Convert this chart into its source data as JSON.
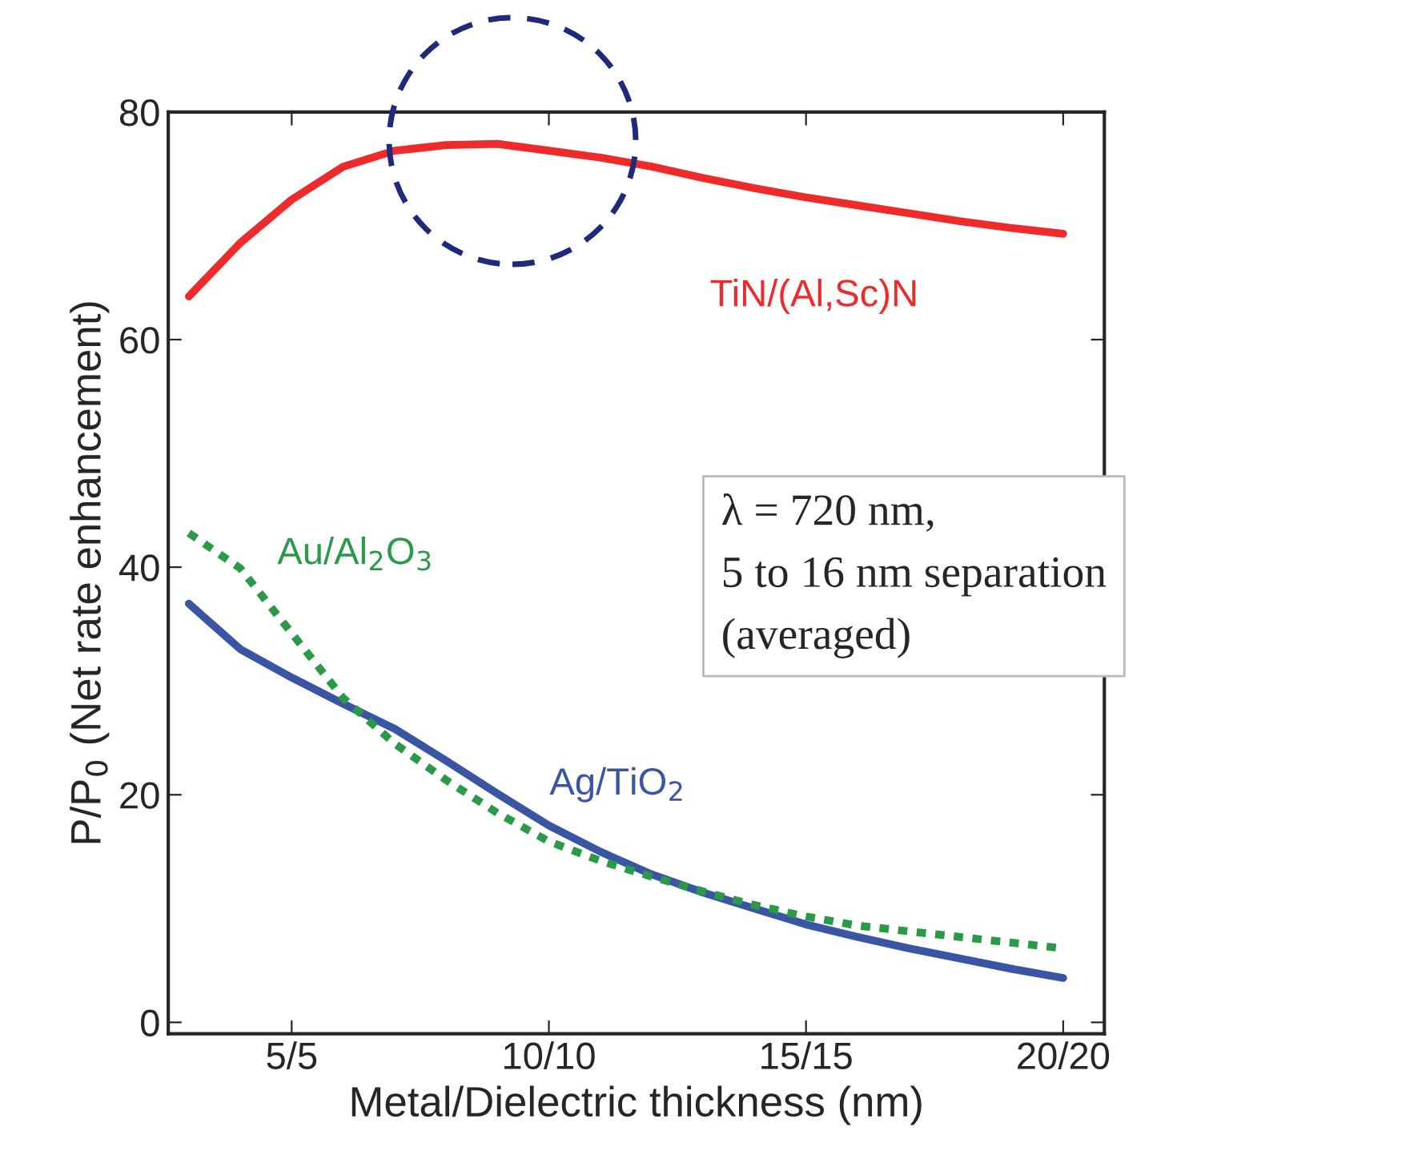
{
  "chart_data": {
    "type": "line",
    "xlabel": "Metal/Dielectric thickness (nm)",
    "ylabel": "P/P$_{0}$ (Net rate enhancement)",
    "categories": [
      null,
      null,
      "5/5",
      null,
      null,
      null,
      null,
      "10/10",
      null,
      null,
      null,
      null,
      "15/15",
      null,
      null,
      null,
      null,
      "20/20"
    ],
    "ylim": [
      -1,
      80
    ],
    "yticks": [
      0,
      20,
      40,
      60,
      80
    ],
    "grid": false,
    "legend": false,
    "series": [
      {
        "name": "TiN/(Al,Sc)N",
        "color": "#ee2a2a",
        "line_style": "solid",
        "values": [
          63.8,
          68.5,
          72.3,
          75.2,
          76.6,
          77.1,
          77.2,
          76.6,
          76,
          75.2,
          74.2,
          73.3,
          72.5,
          71.8,
          71.1,
          70.4,
          69.8,
          69.3
        ]
      },
      {
        "name": "Ag/TiO$_{2}$",
        "color": "#3a55a4",
        "line_style": "solid",
        "values": [
          36.8,
          32.8,
          30.3,
          28,
          25.8,
          23,
          20.1,
          17.3,
          15,
          13,
          11.4,
          10,
          8.6,
          7.5,
          6.5,
          5.6,
          4.7,
          3.9
        ]
      },
      {
        "name": "Au/Al$_{2}$O$_{3}$",
        "color": "#2a9a48",
        "line_style": "dotted",
        "values": [
          43,
          39.9,
          34.2,
          28.5,
          24.5,
          21.3,
          18.4,
          15.9,
          14.2,
          12.8,
          11.5,
          10.3,
          9.3,
          8.5,
          8,
          7.5,
          7,
          6.5
        ]
      }
    ],
    "annotations": [
      "λ = 720 nm,\n5 to 16 nm separation\n(averaged)"
    ]
  }
}
